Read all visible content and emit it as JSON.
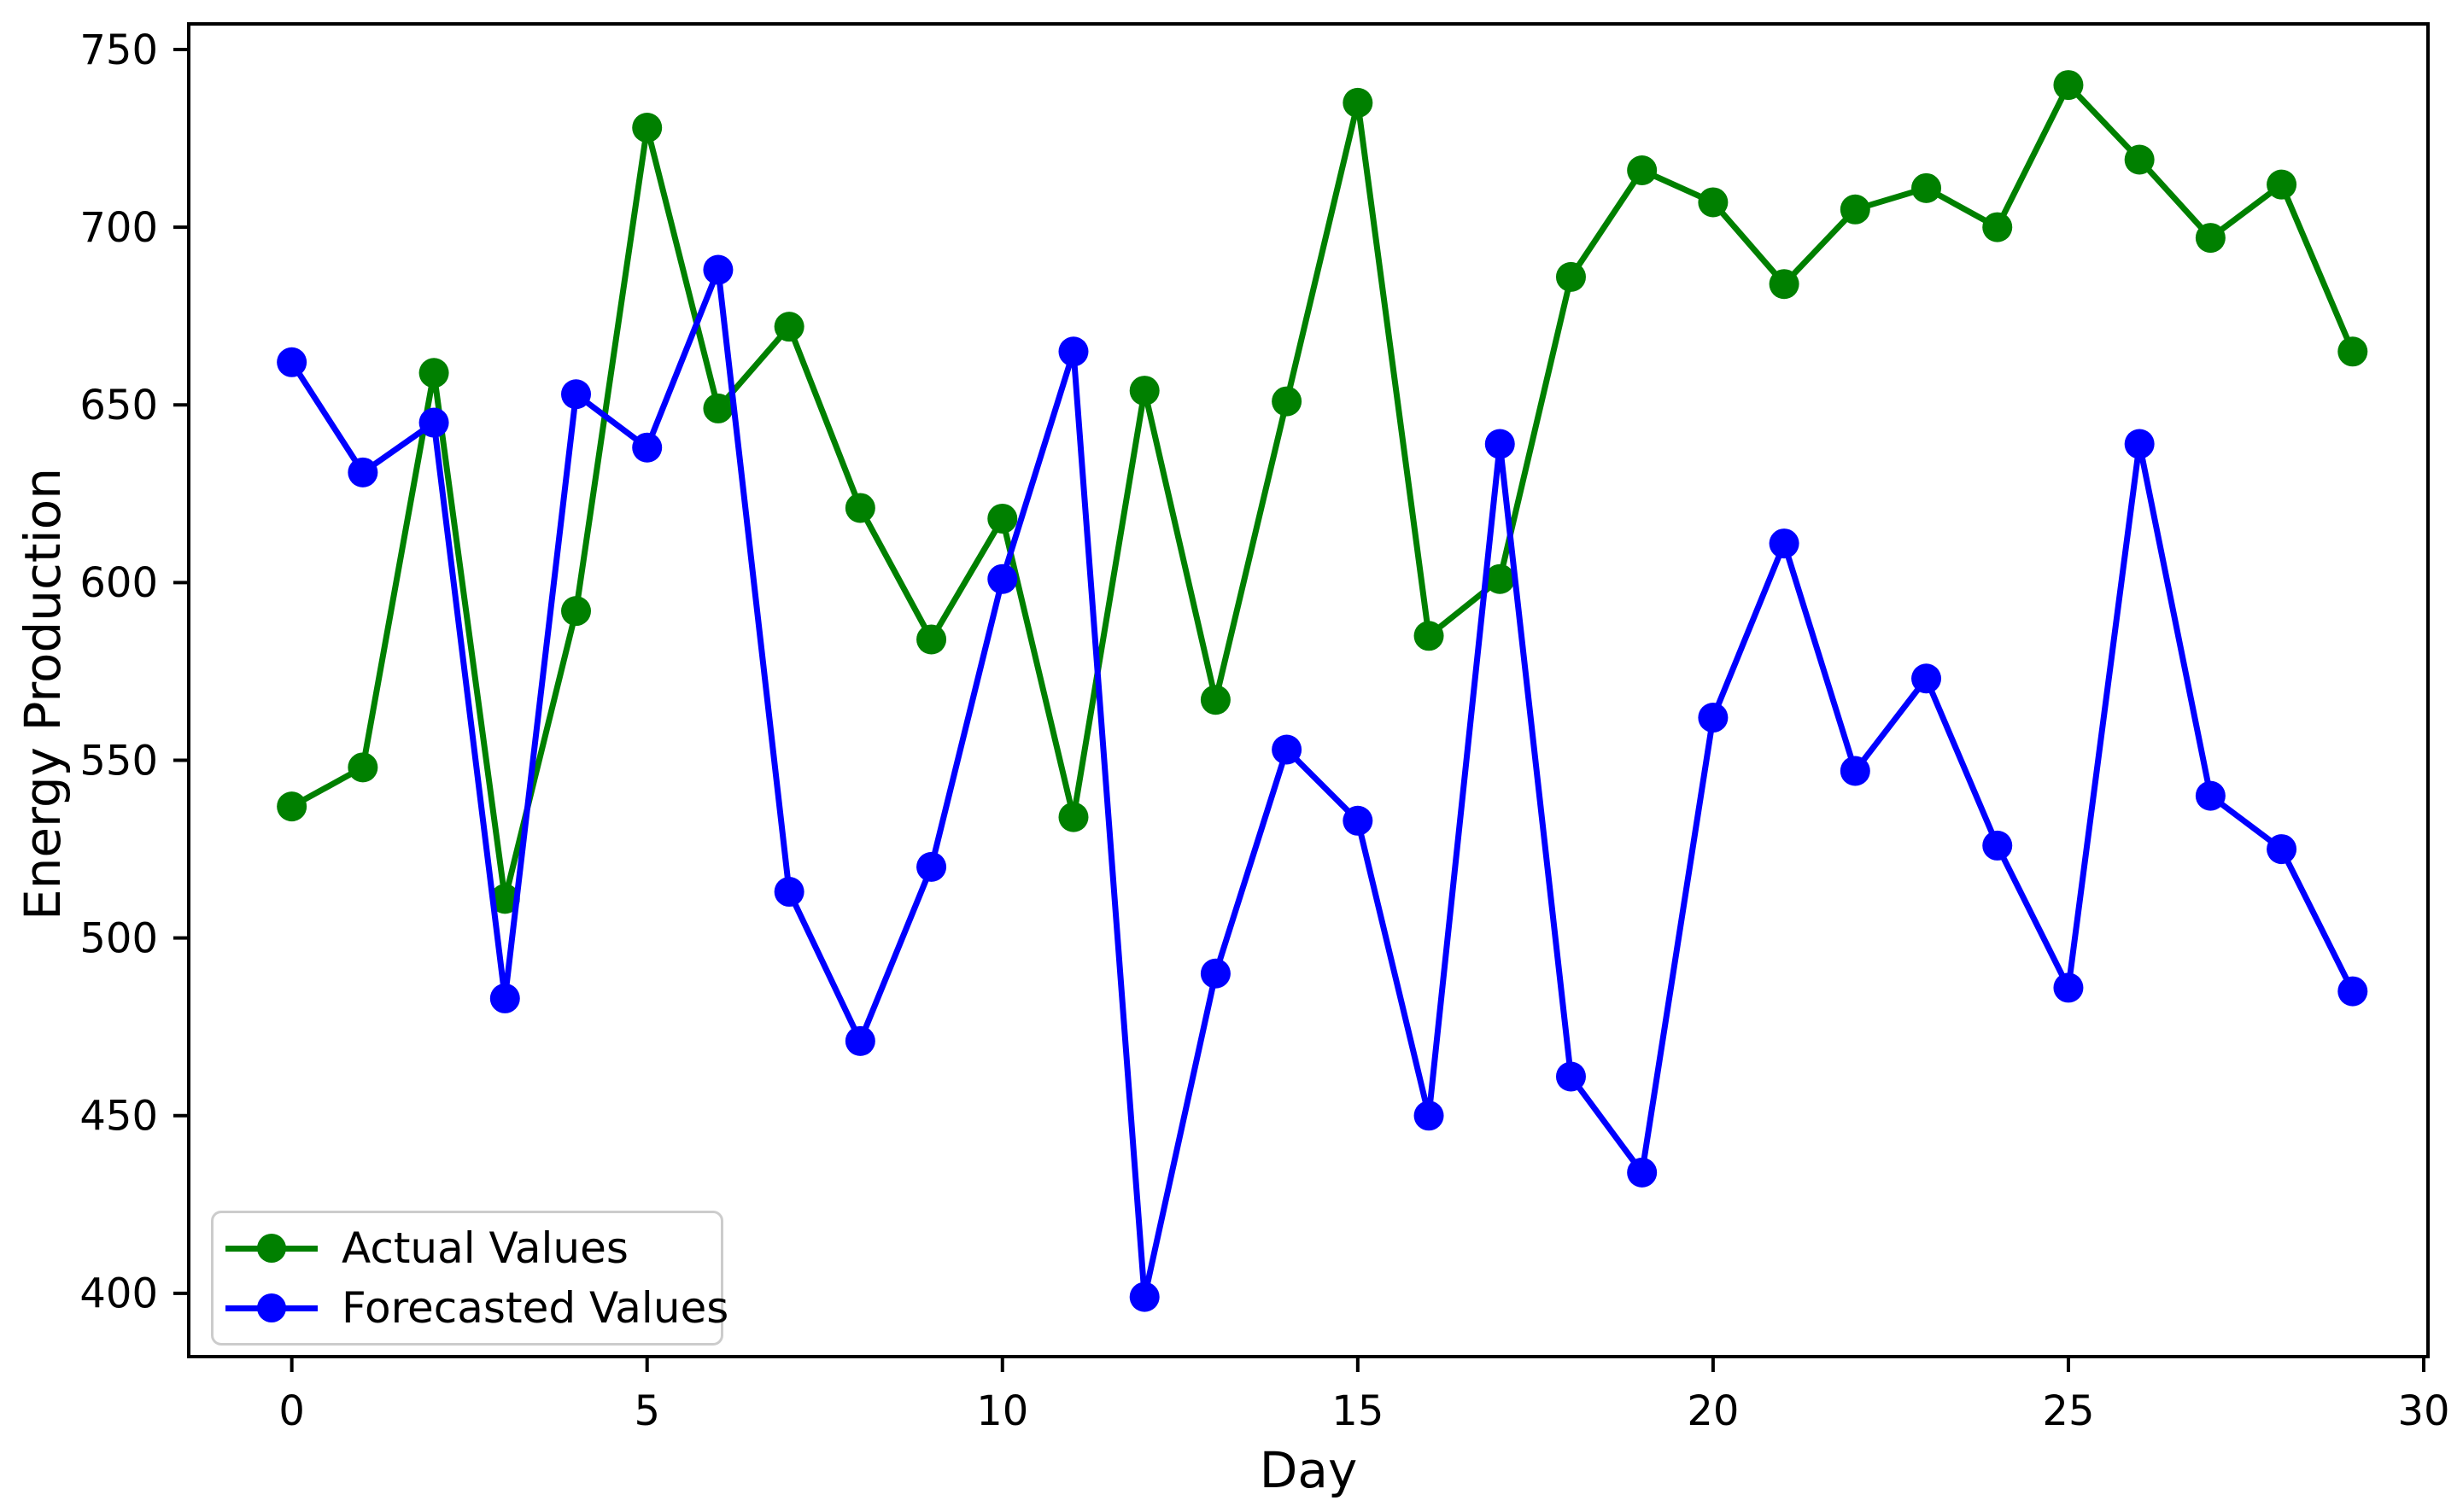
{
  "chart_data": {
    "type": "line",
    "title": "",
    "xlabel": "Day",
    "ylabel": "Energy Production",
    "x": [
      0,
      1,
      2,
      3,
      4,
      5,
      6,
      7,
      8,
      9,
      10,
      11,
      12,
      13,
      14,
      15,
      16,
      17,
      18,
      19,
      20,
      21,
      22,
      23,
      24,
      25,
      26,
      27,
      28,
      29
    ],
    "series": [
      {
        "name": "Actual Values",
        "color": "#008000",
        "values": [
          537,
          548,
          659,
          511,
          592,
          728,
          649,
          672,
          621,
          584,
          618,
          534,
          654,
          567,
          651,
          735,
          585,
          601,
          686,
          716,
          707,
          684,
          705,
          711,
          700,
          740,
          719,
          697,
          712,
          665
        ]
      },
      {
        "name": "Forecasted Values",
        "color": "#0000ff",
        "values": [
          662,
          631,
          645,
          483,
          653,
          638,
          688,
          513,
          471,
          520,
          601,
          665,
          399,
          490,
          553,
          533,
          450,
          639,
          461,
          434,
          562,
          611,
          547,
          573,
          526,
          486,
          639,
          540,
          525,
          485
        ]
      }
    ],
    "xticks": [
      0,
      5,
      10,
      15,
      20,
      25,
      30
    ],
    "yticks": [
      400,
      450,
      500,
      550,
      600,
      650,
      700,
      750
    ],
    "xlim": [
      -1.45,
      30.06
    ],
    "ylim": [
      382.2,
      757.2
    ],
    "grid": false,
    "legend_position": "lower left",
    "background_color": "#ffffff",
    "axis_color": "#000000",
    "tick_label_color": "#000000"
  }
}
